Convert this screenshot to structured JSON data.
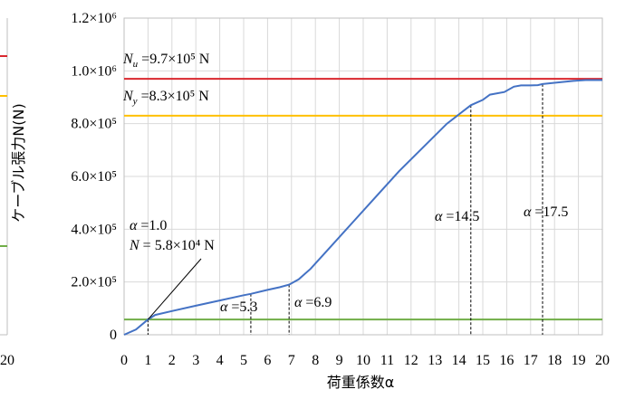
{
  "chart_data": {
    "type": "line",
    "xlabel": "荷重係数α",
    "ylabel": "ケーブル張力N(N)",
    "xlim": [
      0,
      20
    ],
    "ylim": [
      0,
      1200000
    ],
    "x_ticks": [
      "0",
      "1",
      "2",
      "3",
      "4",
      "5",
      "6",
      "7",
      "8",
      "9",
      "10",
      "11",
      "12",
      "13",
      "14",
      "15",
      "16",
      "17",
      "18",
      "19",
      "20"
    ],
    "y_ticks": [
      {
        "value": 0,
        "label": "0"
      },
      {
        "value": 200000,
        "label": "2.0×10⁵"
      },
      {
        "value": 400000,
        "label": "4.0×10⁵"
      },
      {
        "value": 600000,
        "label": "6.0×10⁵"
      },
      {
        "value": 800000,
        "label": "8.0×10⁵"
      },
      {
        "value": 1000000,
        "label": "1.0×10⁶"
      },
      {
        "value": 1200000,
        "label": "1.2×10⁶"
      }
    ],
    "grid": true,
    "series": [
      {
        "color": "#4472C4",
        "x": [
          0,
          0.5,
          1.0,
          1.3,
          2,
          3,
          4,
          5,
          5.3,
          6,
          6.5,
          6.9,
          7.3,
          7.8,
          8.5,
          9.5,
          10.5,
          11.5,
          12.5,
          13.5,
          14.5,
          15.0,
          15.3,
          15.9,
          16.3,
          16.6,
          17.0,
          17.3,
          17.5,
          18.0,
          18.8,
          19.3,
          20.0
        ],
        "y": [
          0,
          20000,
          58000,
          75000,
          90000,
          110000,
          130000,
          150000,
          155000,
          170000,
          180000,
          190000,
          210000,
          250000,
          320000,
          420000,
          520000,
          620000,
          710000,
          800000,
          870000,
          890000,
          910000,
          920000,
          940000,
          945000,
          945000,
          946000,
          950000,
          955000,
          962000,
          965000,
          965000
        ]
      }
    ],
    "reference_lines": [
      {
        "y": 970000,
        "color": "#D9272E"
      },
      {
        "y": 830000,
        "color": "#FFC000"
      },
      {
        "y": 58000,
        "color": "#70AD47"
      }
    ],
    "markers": [
      {
        "x": 1.0,
        "y": 58000
      },
      {
        "x": 5.3,
        "y": 155000
      },
      {
        "x": 6.9,
        "y": 190000
      },
      {
        "x": 14.5,
        "y": 870000
      },
      {
        "x": 17.5,
        "y": 950000
      }
    ],
    "annotations": {
      "nu": {
        "sym": "N",
        "sub": "u",
        "text": " =9.7×10⁵ N"
      },
      "ny": {
        "sym": "N",
        "sub": "y",
        "text": " =8.3×10⁵ N"
      },
      "a10": {
        "sym": "α",
        "text": " =1.0"
      },
      "n58": {
        "sym": "N",
        "text": " = 5.8×10⁴ N"
      },
      "a53": {
        "sym": "α",
        "text": " =5.3"
      },
      "a69": {
        "sym": "α",
        "text": " =6.9"
      },
      "a145": {
        "sym": "α",
        "text": " =14.5"
      },
      "a175": {
        "sym": "α",
        "text": " =17.5"
      }
    },
    "left_panel_fragment": {
      "tick_label": "20",
      "line_colors": [
        "#D9272E",
        "#FFC000",
        "#70AD47"
      ]
    }
  }
}
